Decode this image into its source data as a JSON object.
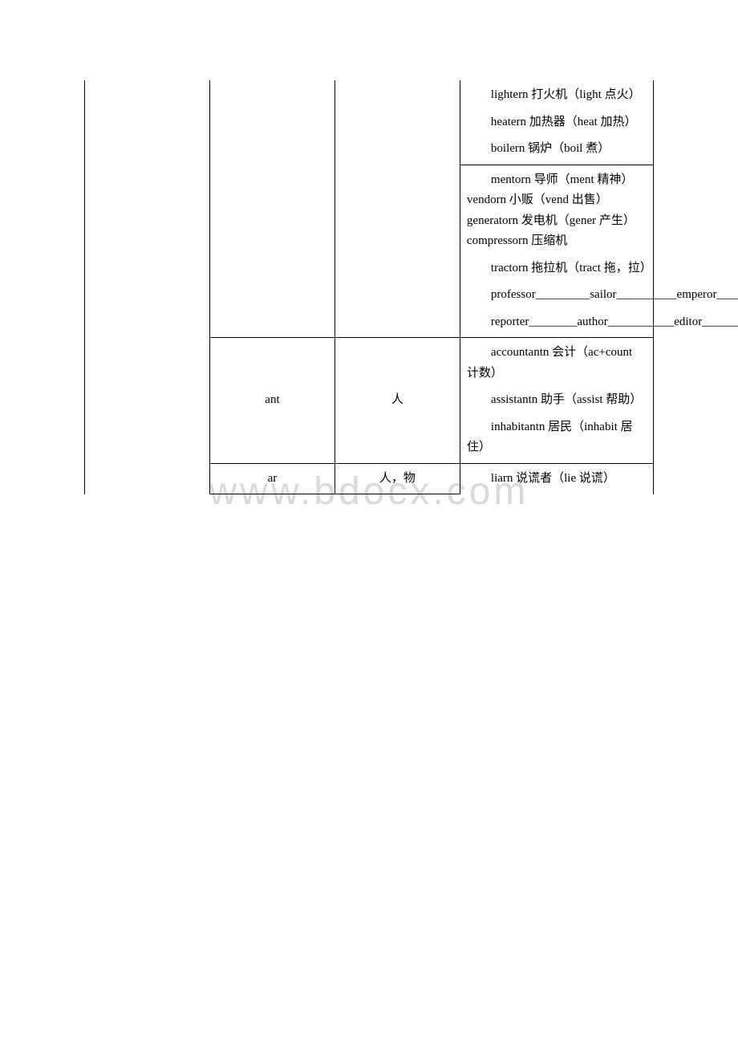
{
  "watermark": "www.bdocx.com",
  "table": {
    "border_color": "#000000",
    "background_color": "#ffffff",
    "font_size": 15,
    "columns": {
      "col1_width_pct": 22,
      "col2_width_pct": 22,
      "col3_width_pct": 22,
      "col4_width_pct": 34
    },
    "rows": [
      {
        "col1": "",
        "col2": "",
        "col3": "",
        "col1_open_top": true,
        "col2_open_top": true,
        "col3_open_top": true,
        "col1_open_bottom": true,
        "col2_open_bottom": true,
        "col3_open_bottom": true,
        "col4_open_top": true,
        "cells4": [
          "lightern 打火机（light 点火）",
          "heatern 加热器（heat 加热）",
          "boilern 锅炉（boil 煮）"
        ]
      },
      {
        "col1": "",
        "col2": "",
        "col3": "",
        "col1_open_top": true,
        "col2_open_top": true,
        "col3_open_top": true,
        "col1_open_bottom": true,
        "col2_open_bottom": true,
        "col3_open_bottom": true,
        "cells4": [
          "mentorn 导师（ment 精神）vendorn 小贩（vend 出售）generatorn 发电机（gener 产生）compressorn 压缩机",
          "tractorn 拖拉机（tract 拖，拉）",
          "professor_________sailor__________emperor_________",
          "reporter________author___________editor_________monitor________"
        ]
      },
      {
        "col1": "",
        "col2": "ant",
        "col3": "人",
        "col1_open_top": true,
        "col1_open_bottom": true,
        "cells4": [
          "accountantn 会计（ac+count 计数）",
          "assistantn 助手（assist 帮助）",
          "inhabitantn 居民（inhabit 居住）"
        ]
      },
      {
        "col1": "",
        "col2": "ar",
        "col3": "人，物",
        "col1_open_top": true,
        "col1_open_bottom": true,
        "col4_open_bottom": true,
        "cells4": [
          "liarn 说谎者（lie 说谎）"
        ]
      }
    ]
  }
}
